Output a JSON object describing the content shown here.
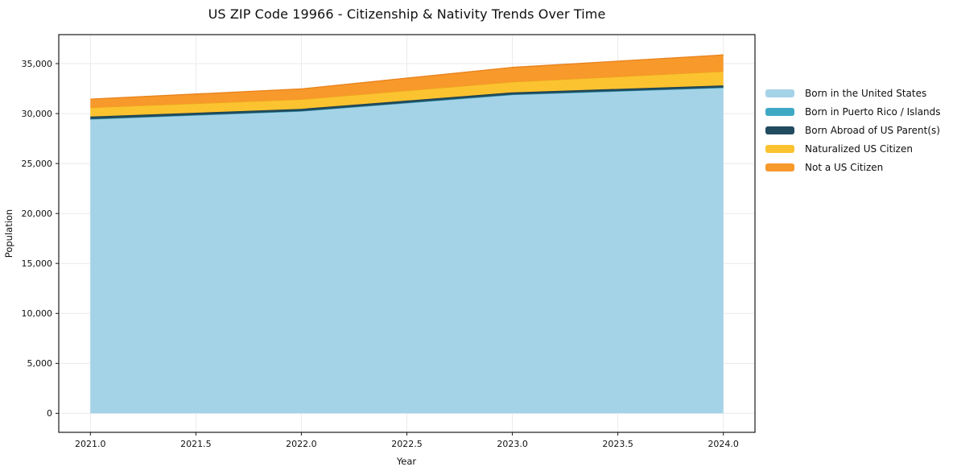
{
  "chart_data": {
    "type": "area",
    "stacked": true,
    "title": "US ZIP Code 19966 - Citizenship & Nativity Trends Over Time",
    "xlabel": "Year",
    "ylabel": "Population",
    "x": [
      2021,
      2022,
      2023,
      2024
    ],
    "series": [
      {
        "name": "Born in the United States",
        "color": "#a4d3e8",
        "edge": "#8fc4dc",
        "values": [
          29450,
          30250,
          31900,
          32600
        ]
      },
      {
        "name": "Born in Puerto Rico / Islands",
        "color": "#3fa9c5",
        "edge": "#3596b1",
        "values": [
          0,
          0,
          0,
          0
        ]
      },
      {
        "name": "Born Abroad of US Parent(s)",
        "color": "#214b5e",
        "edge": "#1a3e4e",
        "values": [
          250,
          220,
          220,
          220
        ]
      },
      {
        "name": "Naturalized US Citizen",
        "color": "#fcc330",
        "edge": "#eca41d",
        "values": [
          900,
          950,
          1050,
          1400
        ]
      },
      {
        "name": "Not a US Citizen",
        "color": "#f8992b",
        "edge": "#e8821c",
        "values": [
          850,
          1050,
          1450,
          1650
        ]
      }
    ],
    "totals": [
      31450,
      32470,
      34620,
      35870
    ],
    "xticks": [
      2021.0,
      2021.5,
      2022.0,
      2022.5,
      2023.0,
      2023.5,
      2024.0
    ],
    "xtick_labels": [
      "2021.0",
      "2021.5",
      "2022.0",
      "2022.5",
      "2023.0",
      "2023.5",
      "2024.0"
    ],
    "yticks": [
      0,
      5000,
      10000,
      15000,
      20000,
      25000,
      30000,
      35000
    ],
    "ytick_labels": [
      "0",
      "5,000",
      "10,000",
      "15,000",
      "20,000",
      "25,000",
      "30,000",
      "35,000"
    ],
    "xlim": [
      2020.85,
      2024.15
    ],
    "ylim": [
      -1900,
      37900
    ],
    "grid": true,
    "legend_position": "center-right, outside plot"
  }
}
